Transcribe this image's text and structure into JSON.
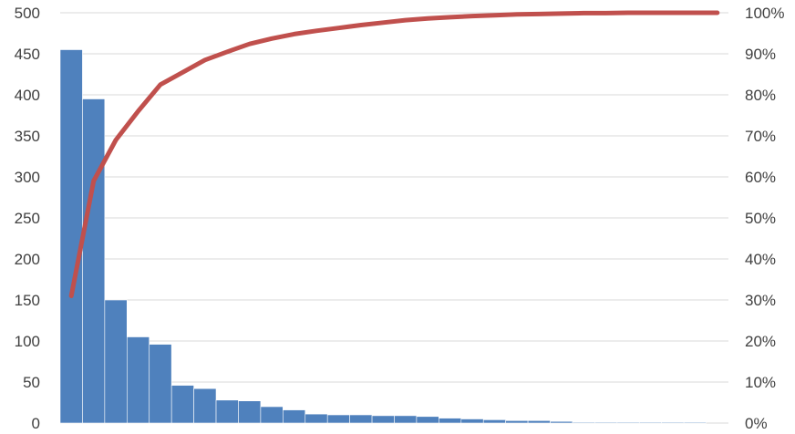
{
  "chart_data": {
    "type": "bar",
    "subtype": "pareto",
    "title": "",
    "xlabel": "",
    "ylabel": "",
    "ylim": [
      0,
      500
    ],
    "y2lim": [
      0,
      1
    ],
    "y_ticks": [
      0,
      50,
      100,
      150,
      200,
      250,
      300,
      350,
      400,
      450,
      500
    ],
    "y2_ticks": [
      "0%",
      "10%",
      "20%",
      "30%",
      "40%",
      "50%",
      "60%",
      "70%",
      "80%",
      "90%",
      "100%"
    ],
    "grid": true,
    "legend": "none",
    "colors": {
      "bars": "#4f81bd",
      "cumulative_line": "#c0504d"
    },
    "series": [
      {
        "kind": "bar",
        "values": [
          455,
          395,
          150,
          105,
          96,
          46,
          42,
          28,
          27,
          20,
          16,
          11,
          10,
          10,
          9,
          9,
          8,
          6,
          5,
          4,
          3,
          3,
          2,
          1,
          1,
          1,
          1,
          1,
          1,
          0
        ]
      },
      {
        "kind": "line",
        "axis": "secondary",
        "unit": "fraction",
        "values": [
          0.31,
          0.59,
          0.69,
          0.76,
          0.825,
          0.855,
          0.885,
          0.905,
          0.924,
          0.937,
          0.948,
          0.956,
          0.963,
          0.97,
          0.976,
          0.982,
          0.986,
          0.989,
          0.992,
          0.994,
          0.996,
          0.997,
          0.998,
          0.999,
          0.999,
          1.0,
          1.0,
          1.0,
          1.0,
          1.0
        ]
      }
    ]
  }
}
